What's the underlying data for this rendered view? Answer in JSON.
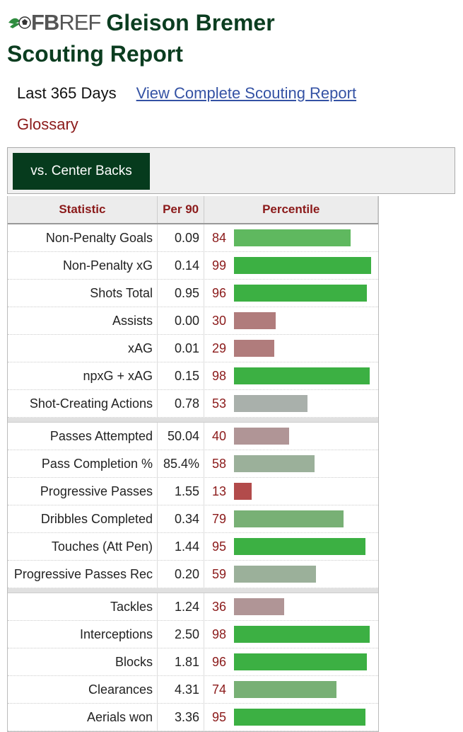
{
  "header": {
    "logo_fb": "FB",
    "logo_ref": "REF",
    "player_name": "Gleison Bremer",
    "subtitle": "Scouting Report"
  },
  "meta": {
    "range": "Last 365 Days",
    "full_report_link": "View Complete Scouting Report",
    "glossary": "Glossary"
  },
  "tabs": [
    {
      "label": "vs. Center Backs"
    }
  ],
  "table": {
    "headers": [
      "Statistic",
      "Per 90",
      "Percentile"
    ],
    "groups": [
      [
        {
          "stat": "Non-Penalty Goals",
          "per90": "0.09",
          "pct": 84
        },
        {
          "stat": "Non-Penalty xG",
          "per90": "0.14",
          "pct": 99
        },
        {
          "stat": "Shots Total",
          "per90": "0.95",
          "pct": 96
        },
        {
          "stat": "Assists",
          "per90": "0.00",
          "pct": 30
        },
        {
          "stat": "xAG",
          "per90": "0.01",
          "pct": 29
        },
        {
          "stat": "npxG + xAG",
          "per90": "0.15",
          "pct": 98
        },
        {
          "stat": "Shot-Creating Actions",
          "per90": "0.78",
          "pct": 53
        }
      ],
      [
        {
          "stat": "Passes Attempted",
          "per90": "50.04",
          "pct": 40
        },
        {
          "stat": "Pass Completion %",
          "per90": "85.4%",
          "pct": 58
        },
        {
          "stat": "Progressive Passes",
          "per90": "1.55",
          "pct": 13
        },
        {
          "stat": "Dribbles Completed",
          "per90": "0.34",
          "pct": 79
        },
        {
          "stat": "Touches (Att Pen)",
          "per90": "1.44",
          "pct": 95
        },
        {
          "stat": "Progressive Passes Rec",
          "per90": "0.20",
          "pct": 59
        }
      ],
      [
        {
          "stat": "Tackles",
          "per90": "1.24",
          "pct": 36
        },
        {
          "stat": "Interceptions",
          "per90": "2.50",
          "pct": 98
        },
        {
          "stat": "Blocks",
          "per90": "1.81",
          "pct": 96
        },
        {
          "stat": "Clearances",
          "per90": "4.31",
          "pct": 74
        },
        {
          "stat": "Aerials won",
          "per90": "3.36",
          "pct": 95
        }
      ]
    ]
  },
  "colors": {
    "brand_green": "#063b1d",
    "title_green": "#0b3d20",
    "header_red": "#8b1a1a",
    "link_blue": "#3452a4"
  }
}
